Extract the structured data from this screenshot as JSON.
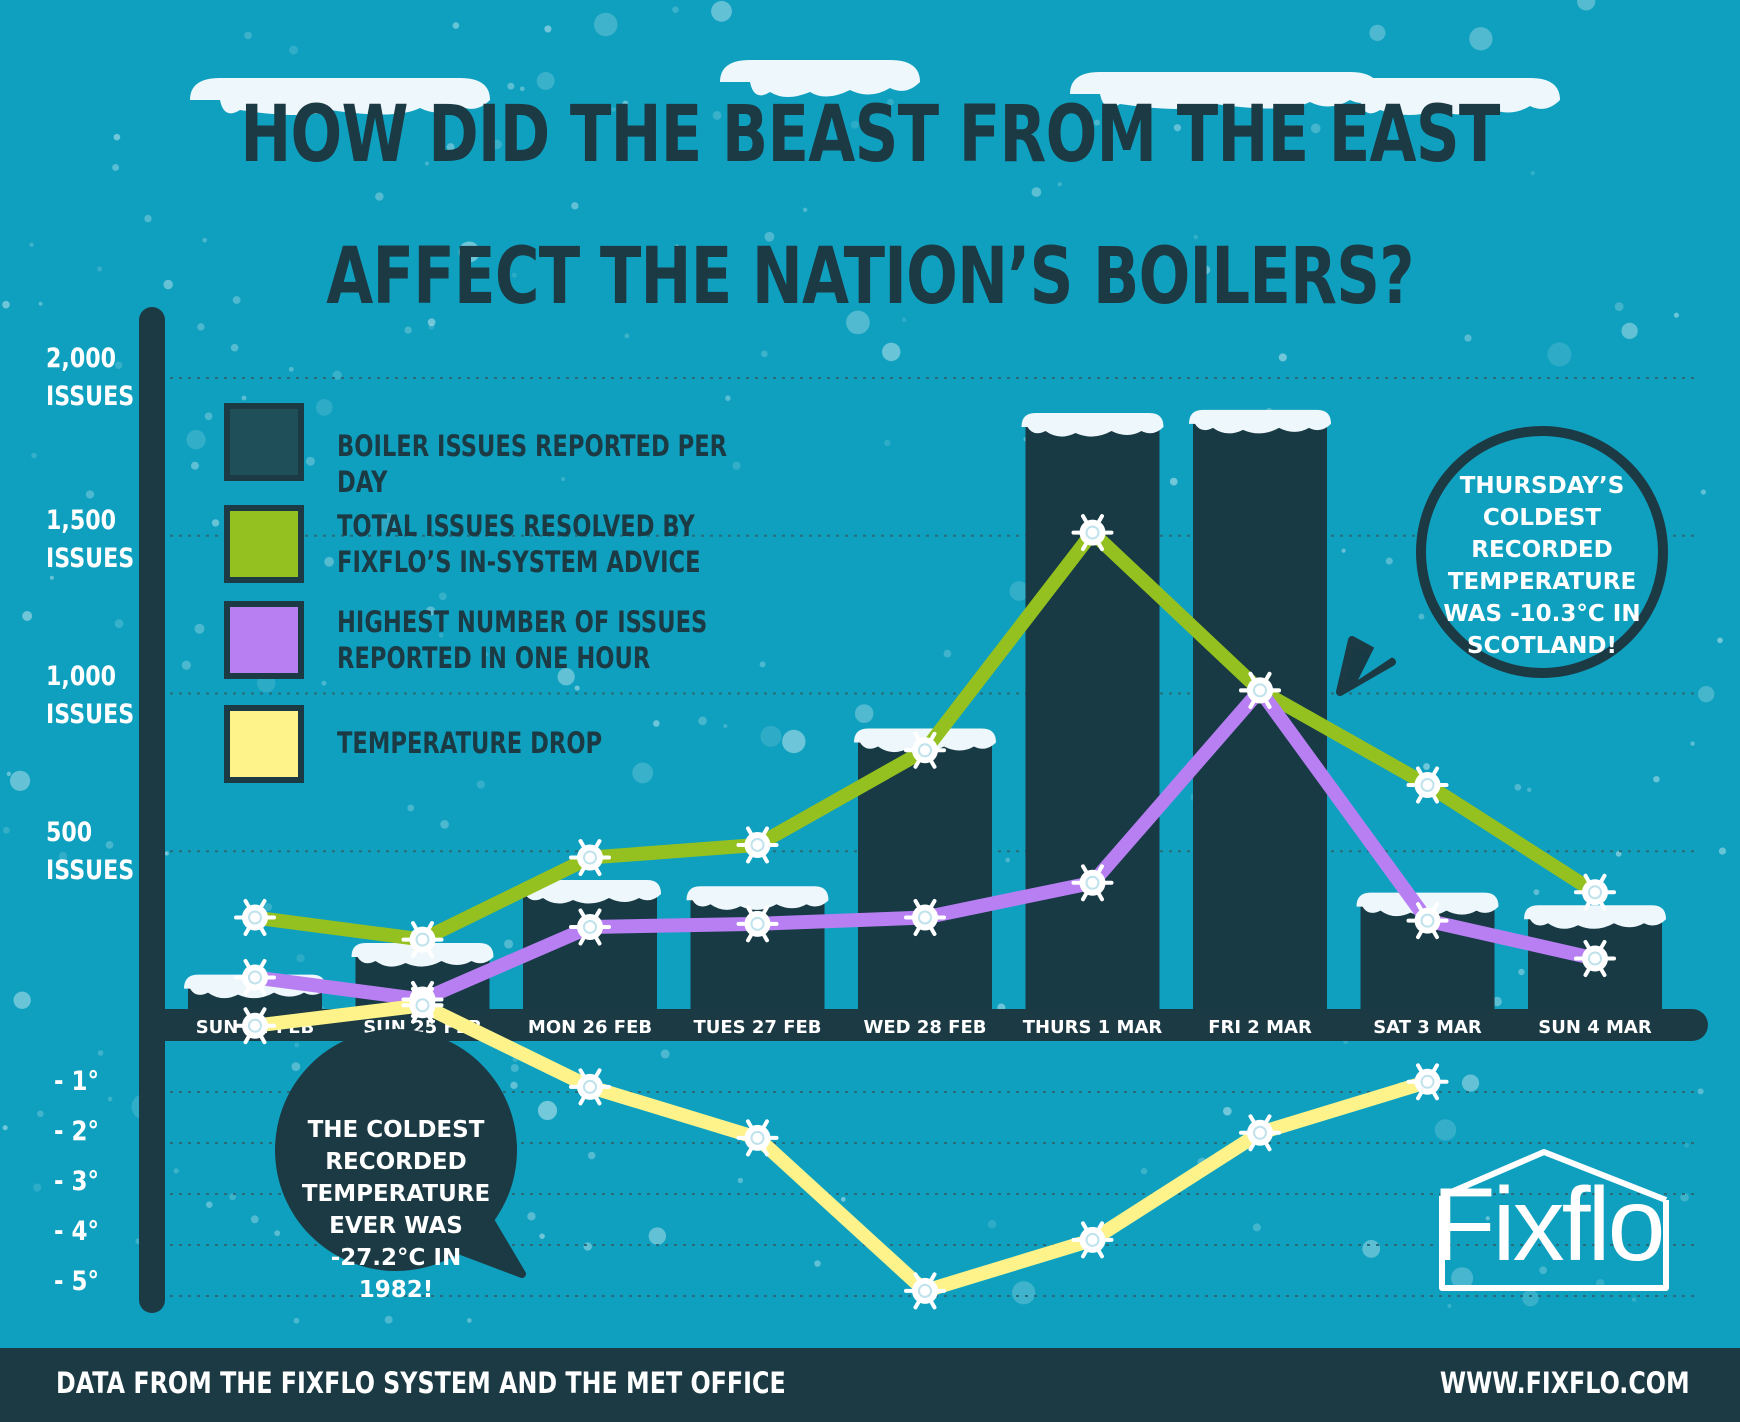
{
  "title": {
    "line1": "HOW DID THE BEAST FROM THE EAST",
    "line2": "AFFECT THE NATION’S BOILERS?"
  },
  "y_axis_labels": [
    {
      "value": "2,000",
      "unit": "ISSUES"
    },
    {
      "value": "1,500",
      "unit": "ISSUES"
    },
    {
      "value": "1,000",
      "unit": "ISSUES"
    },
    {
      "value": "500",
      "unit": "ISSUES"
    }
  ],
  "temp_axis_labels": [
    "- 1°",
    "- 2°",
    "- 3°",
    "- 4°",
    "- 5°"
  ],
  "legend": [
    {
      "label": "BOILER ISSUES REPORTED PER DAY",
      "color": "#1f4f58"
    },
    {
      "label": "TOTAL ISSUES RESOLVED BY FIXFLO’S IN-SYSTEM ADVICE",
      "color": "#94c11f"
    },
    {
      "label": "HIGHEST NUMBER OF ISSUES REPORTED IN ONE HOUR",
      "color": "#b77ff2"
    },
    {
      "label": "TEMPERATURE DROP",
      "color": "#fdf38a"
    }
  ],
  "callouts": {
    "thursday": "THURSDAY’S COLDEST RECORDED TEMPERATURE WAS -10.3°C IN SCOTLAND!",
    "coldest": "THE COLDEST RECORDED TEMPERATURE EVER WAS -27.2°C IN 1982!"
  },
  "logo": "Fixflo",
  "footer": {
    "source": "DATA FROM THE FIXFLO SYSTEM AND THE MET OFFICE",
    "url": "WWW.FIXFLO.COM"
  },
  "colors": {
    "background": "#0fa0bf",
    "dark": "#1c3a44",
    "bar": "#173a44",
    "green": "#94c11f",
    "purple": "#b77ff2",
    "yellow": "#fdf38a",
    "white": "#ffffff"
  },
  "chart_data": {
    "type": "bar",
    "categories": [
      "SUN 24  FEB",
      "SUN 25 FEB",
      "MON 26 FEB",
      "TUES 27 FEB",
      "WED 28 FEB",
      "THURS 1 MAR",
      "FRI 2 MAR",
      "SAT 3 MAR",
      "SUN 4 MAR"
    ],
    "ylim": [
      0,
      2000
    ],
    "temp_ylim": [
      -5,
      0
    ],
    "series": [
      {
        "name": "BOILER ISSUES REPORTED PER DAY",
        "type": "bar",
        "values": [
          90,
          190,
          390,
          370,
          870,
          1870,
          1880,
          350,
          310
        ]
      },
      {
        "name": "TOTAL ISSUES RESOLVED BY FIXFLO’S IN-SYSTEM ADVICE",
        "type": "line",
        "values": [
          290,
          220,
          480,
          520,
          820,
          1510,
          1010,
          710,
          370
        ]
      },
      {
        "name": "HIGHEST NUMBER OF ISSUES REPORTED IN ONE HOUR",
        "type": "line",
        "values": [
          100,
          30,
          260,
          270,
          290,
          400,
          1010,
          280,
          160
        ]
      },
      {
        "name": "TEMPERATURE DROP",
        "type": "line",
        "axis": "temperature",
        "values": [
          0.3,
          0.7,
          -0.9,
          -1.9,
          -4.9,
          -3.9,
          -1.8,
          -0.8,
          null
        ]
      }
    ]
  }
}
